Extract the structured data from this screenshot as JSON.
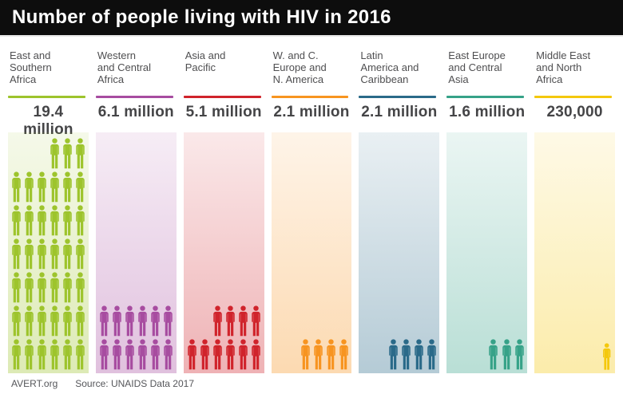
{
  "title": "Number of people living with HIV in 2016",
  "footer": {
    "brand": "AVERT.org",
    "source": "Source: UNAIDS Data 2017"
  },
  "chart_data": {
    "type": "pictogram-bar",
    "title": "Number of people living with HIV in 2016",
    "source": "UNAIDS Data 2017",
    "unit_per_icon": 500000,
    "icons_per_row": 6,
    "categories": [
      "East and Southern Africa",
      "Western and Central Africa",
      "Asia and Pacific",
      "W. and C. Europe and N. America",
      "Latin America and Caribbean",
      "East Europe and Central Asia",
      "Middle East and North Africa"
    ],
    "values": [
      19400000,
      6100000,
      5100000,
      2100000,
      2100000,
      1600000,
      230000
    ],
    "regions": [
      {
        "name": "East and Southern Africa",
        "label_lines": [
          "East and",
          "Southern",
          "Africa"
        ],
        "value": 19400000,
        "value_label": "19.4 million",
        "color": "#9DC42C",
        "icon_count": 39,
        "icon_scale": 1
      },
      {
        "name": "Western and Central Africa",
        "label_lines": [
          "Western",
          "and Central",
          "Africa"
        ],
        "value": 6100000,
        "value_label": "6.1 million",
        "color": "#A74CA0",
        "icon_count": 12,
        "icon_scale": 1
      },
      {
        "name": "Asia and Pacific",
        "label_lines": [
          "Asia and",
          "Pacific"
        ],
        "value": 5100000,
        "value_label": "5.1 million",
        "color": "#D0232B",
        "icon_count": 10,
        "icon_scale": 1
      },
      {
        "name": "W. and C. Europe and N. America",
        "label_lines": [
          "W. and C.",
          "Europe and",
          "N. America"
        ],
        "value": 2100000,
        "value_label": "2.1 million",
        "color": "#F79420",
        "icon_count": 4,
        "icon_scale": 1
      },
      {
        "name": "Latin America and Caribbean",
        "label_lines": [
          "Latin",
          "America and",
          "Caribbean"
        ],
        "value": 2100000,
        "value_label": "2.1 million",
        "color": "#2A6A89",
        "icon_count": 4,
        "icon_scale": 1
      },
      {
        "name": "East Europe and Central Asia",
        "label_lines": [
          "East Europe",
          "and Central",
          "Asia"
        ],
        "value": 1600000,
        "value_label": "1.6 million",
        "color": "#36A288",
        "icon_count": 3,
        "icon_scale": 1
      },
      {
        "name": "Middle East and North Africa",
        "label_lines": [
          "Middle East",
          "and North",
          "Africa"
        ],
        "value": 230000,
        "value_label": "230,000",
        "color": "#F4C80D",
        "icon_count": 1,
        "icon_scale": 0.88
      }
    ]
  }
}
